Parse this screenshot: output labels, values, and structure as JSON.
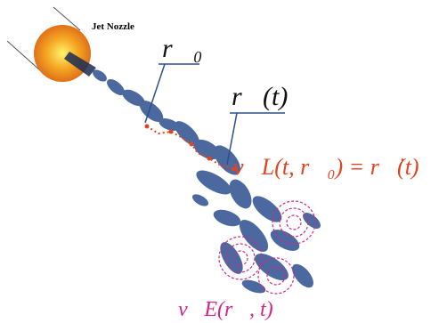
{
  "labels": {
    "nozzle": "Jet Nozzle",
    "initial_position": "r⃗₀",
    "position": "r⃗(t)",
    "lagrangian_velocity": "v⃗L(t, r⃗₀) = r⃗̇(t)",
    "eulerian_velocity": "v⃗E(r⃗, t)"
  }
}
